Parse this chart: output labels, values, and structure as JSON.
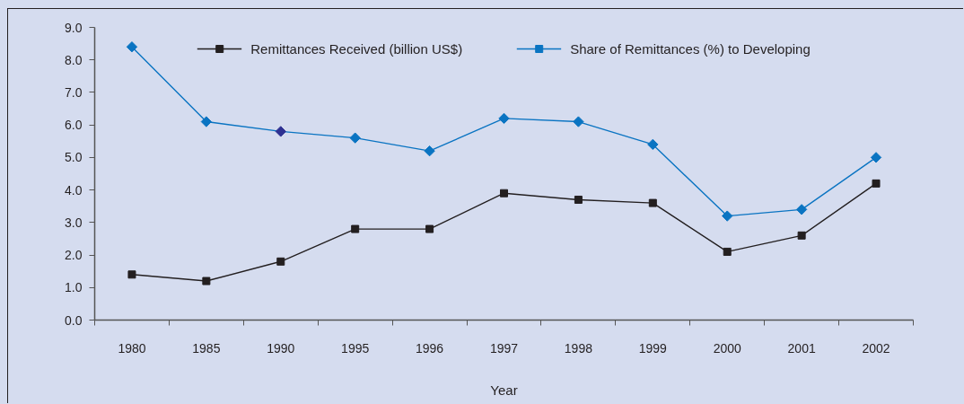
{
  "chart_data": {
    "type": "line",
    "xlabel": "Year",
    "categories": [
      "1980",
      "1985",
      "1990",
      "1995",
      "1996",
      "1997",
      "1998",
      "1999",
      "2000",
      "2001",
      "2002"
    ],
    "series": [
      {
        "name": "Remittances Received (billion US$)",
        "color": "#231f20",
        "marker": "square",
        "values": [
          1.4,
          1.2,
          1.8,
          2.8,
          2.8,
          3.9,
          3.7,
          3.6,
          2.1,
          2.6,
          4.2
        ]
      },
      {
        "name": "Share of Remittances (%) to Developing",
        "color": "#0a74c2",
        "marker": "diamond",
        "colors": [
          "#0a74c2",
          "#0a74c2",
          "#2e3192",
          "#0a74c2",
          "#0a74c2",
          "#0a74c2",
          "#0a74c2",
          "#0a74c2",
          "#0a74c2",
          "#0a74c2",
          "#0a74c2"
        ],
        "values": [
          8.4,
          6.1,
          5.8,
          5.6,
          5.2,
          6.2,
          6.1,
          5.4,
          3.2,
          3.4,
          5.0
        ]
      }
    ],
    "ylim": [
      0,
      9
    ],
    "yticks": [
      {
        "value": 0,
        "label": "0.0"
      },
      {
        "value": 1,
        "label": "1.0"
      },
      {
        "value": 2,
        "label": "2.0"
      },
      {
        "value": 3,
        "label": "3.0"
      },
      {
        "value": 4,
        "label": "4.0"
      },
      {
        "value": 5,
        "label": "5.0"
      },
      {
        "value": 6,
        "label": "6.0"
      },
      {
        "value": 7,
        "label": "7.0"
      },
      {
        "value": 8,
        "label": "8.0"
      },
      {
        "value": 9,
        "label": "9.0"
      }
    ],
    "legend": "top",
    "grid": false,
    "line_style": "solid"
  }
}
